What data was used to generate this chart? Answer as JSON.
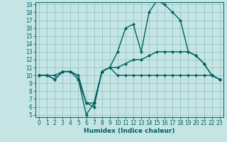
{
  "xlabel": "Humidex (Indice chaleur)",
  "x_values": [
    0,
    1,
    2,
    3,
    4,
    5,
    6,
    7,
    8,
    9,
    10,
    11,
    12,
    13,
    14,
    15,
    16,
    17,
    18,
    19,
    20,
    21,
    22,
    23
  ],
  "line1_y": [
    10,
    10,
    9.5,
    10.5,
    10.5,
    9.5,
    5,
    6.5,
    10.5,
    11,
    10,
    10,
    10,
    10,
    10,
    10,
    10,
    10,
    10,
    10,
    10,
    10,
    10,
    9.5
  ],
  "line2_y": [
    10,
    10,
    9.5,
    10.5,
    10.5,
    9.5,
    6.5,
    6,
    10.5,
    11,
    13,
    16,
    16.5,
    13,
    18,
    19.5,
    19,
    18,
    17,
    13,
    12.5,
    11.5,
    10,
    9.5
  ],
  "line3_y": [
    10,
    10,
    10,
    10.5,
    10.5,
    10,
    6.5,
    6.5,
    10.5,
    11,
    11,
    11.5,
    12,
    12,
    12.5,
    13,
    13,
    13,
    13,
    13,
    12.5,
    11.5,
    10,
    9.5
  ],
  "bg_color": "#c5e5e5",
  "grid_color": "#90bebe",
  "line_color": "#006060",
  "ylim_min": 5,
  "ylim_max": 19,
  "xlim_min": 0,
  "xlim_max": 23,
  "yticks": [
    5,
    6,
    7,
    8,
    9,
    10,
    11,
    12,
    13,
    14,
    15,
    16,
    17,
    18,
    19
  ],
  "xticks": [
    0,
    1,
    2,
    3,
    4,
    5,
    6,
    7,
    8,
    9,
    10,
    11,
    12,
    13,
    14,
    15,
    16,
    17,
    18,
    19,
    20,
    21,
    22,
    23
  ],
  "xlabel_fontsize": 6.5,
  "tick_fontsize": 5.5,
  "linewidth": 1.0,
  "markersize": 2.2
}
